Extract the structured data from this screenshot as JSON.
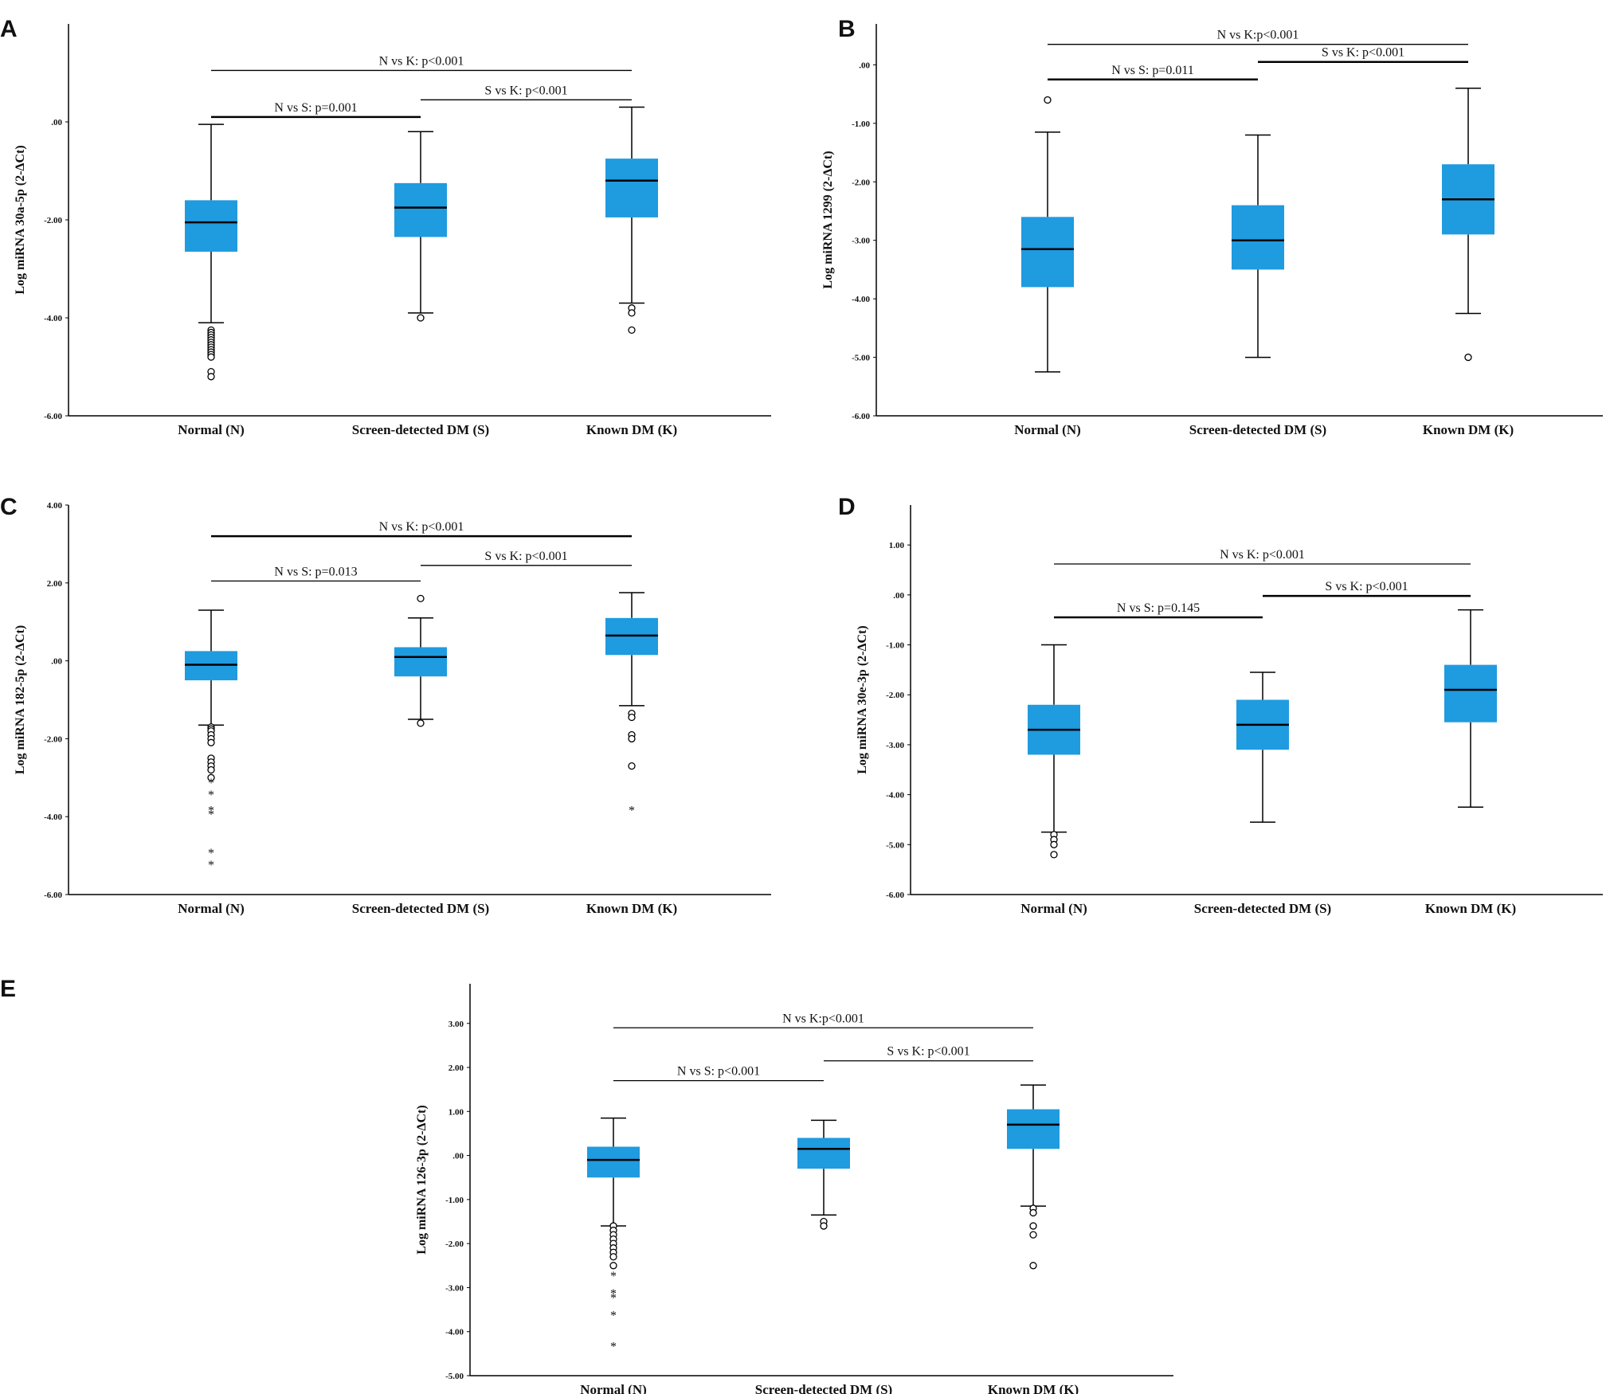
{
  "figure": {
    "background": "#ffffff",
    "box_color": "#1f9be0",
    "line_color": "#000000"
  },
  "chart_data": [
    {
      "panel": "A",
      "type": "boxplot",
      "ylabel": "Log miRNA 30a-5p (2-ΔCt)",
      "ylim": [
        -6,
        2
      ],
      "yticks": [
        {
          "v": 0,
          "label": ".00"
        },
        {
          "v": -2,
          "label": "-2.00"
        },
        {
          "v": -4,
          "label": "-4.00"
        },
        {
          "v": -6,
          "label": "-6.00"
        }
      ],
      "categories": [
        "Normal (N)",
        "Screen-detected DM (S)",
        "Known DM (K)"
      ],
      "boxes": [
        {
          "min": -4.1,
          "q1": -2.65,
          "median": -2.05,
          "q3": -1.6,
          "max": -0.05,
          "outliers": [
            -4.25,
            -4.3,
            -4.35,
            -4.4,
            -4.45,
            -4.5,
            -4.55,
            -4.6,
            -4.65,
            -4.7,
            -4.75,
            -4.8,
            -5.1,
            -5.2
          ],
          "extremes": []
        },
        {
          "min": -3.9,
          "q1": -2.35,
          "median": -1.75,
          "q3": -1.25,
          "max": -0.2,
          "outliers": [
            -4.0
          ],
          "extremes": []
        },
        {
          "min": -3.7,
          "q1": -1.95,
          "median": -1.2,
          "q3": -0.75,
          "max": 0.3,
          "outliers": [
            -3.8,
            -3.9,
            -4.25
          ],
          "extremes": []
        }
      ],
      "comparisons": [
        {
          "label": "N vs S: p=0.001",
          "from": 0,
          "to": 1,
          "y": 0.1,
          "thick": true
        },
        {
          "label": "S vs K: p<0.001",
          "from": 1,
          "to": 2,
          "y": 0.45,
          "thick": false
        },
        {
          "label": "N vs K: p<0.001",
          "from": 0,
          "to": 2,
          "y": 1.05,
          "thick": false
        }
      ]
    },
    {
      "panel": "B",
      "type": "boxplot",
      "ylabel": "Log miRNA 1299 (2-ΔCt)",
      "ylim": [
        -6,
        0.7
      ],
      "yticks": [
        {
          "v": 0,
          "label": ".00"
        },
        {
          "v": -1,
          "label": "-1.00"
        },
        {
          "v": -2,
          "label": "-2.00"
        },
        {
          "v": -3,
          "label": "-3.00"
        },
        {
          "v": -4,
          "label": "-4.00"
        },
        {
          "v": -5,
          "label": "-5.00"
        },
        {
          "v": -6,
          "label": "-6.00"
        }
      ],
      "categories": [
        "Normal (N)",
        "Screen-detected DM (S)",
        "Known DM (K)"
      ],
      "boxes": [
        {
          "min": -5.25,
          "q1": -3.8,
          "median": -3.15,
          "q3": -2.6,
          "max": -1.15,
          "outliers": [
            -0.6
          ],
          "extremes": []
        },
        {
          "min": -5.0,
          "q1": -3.5,
          "median": -3.0,
          "q3": -2.4,
          "max": -1.2,
          "outliers": [],
          "extremes": []
        },
        {
          "min": -4.25,
          "q1": -2.9,
          "median": -2.3,
          "q3": -1.7,
          "max": -0.4,
          "outliers": [
            -5.0
          ],
          "extremes": []
        }
      ],
      "comparisons": [
        {
          "label": "N vs S: p=0.011",
          "from": 0,
          "to": 1,
          "y": -0.25,
          "thick": true
        },
        {
          "label": "S vs K: p<0.001",
          "from": 1,
          "to": 2,
          "y": 0.05,
          "thick": true
        },
        {
          "label": "N vs K:p<0.001",
          "from": 0,
          "to": 2,
          "y": 0.35,
          "thick": false
        }
      ]
    },
    {
      "panel": "C",
      "type": "boxplot",
      "ylabel": "Log miRNA 182-5p (2-ΔCt)",
      "ylim": [
        -6,
        4
      ],
      "yticks": [
        {
          "v": 4,
          "label": "4.00"
        },
        {
          "v": 2,
          "label": "2.00"
        },
        {
          "v": 0,
          "label": ".00"
        },
        {
          "v": -2,
          "label": "-2.00"
        },
        {
          "v": -4,
          "label": "-4.00"
        },
        {
          "v": -6,
          "label": "-6.00"
        }
      ],
      "categories": [
        "Normal (N)",
        "Screen-detected DM (S)",
        "Known DM (K)"
      ],
      "boxes": [
        {
          "min": -1.65,
          "q1": -0.5,
          "median": -0.1,
          "q3": 0.25,
          "max": 1.3,
          "outliers": [
            -1.7,
            -1.75,
            -1.8,
            -1.9,
            -2.0,
            -2.1,
            -2.5,
            -2.6,
            -2.7,
            -2.8,
            -3.0
          ],
          "extremes": [
            -3.1,
            -3.4,
            -3.8,
            -3.9,
            -4.9,
            -5.2
          ]
        },
        {
          "min": -1.5,
          "q1": -0.4,
          "median": 0.1,
          "q3": 0.35,
          "max": 1.1,
          "outliers": [
            1.6,
            -1.6
          ],
          "extremes": []
        },
        {
          "min": -1.15,
          "q1": 0.15,
          "median": 0.65,
          "q3": 1.1,
          "max": 1.75,
          "outliers": [
            -1.35,
            -1.45,
            -1.9,
            -2.0,
            -2.7
          ],
          "extremes": [
            -3.8
          ]
        }
      ],
      "comparisons": [
        {
          "label": "N vs S: p=0.013",
          "from": 0,
          "to": 1,
          "y": 2.05,
          "thick": false
        },
        {
          "label": "S vs K: p<0.001",
          "from": 1,
          "to": 2,
          "y": 2.45,
          "thick": false
        },
        {
          "label": "N vs K: p<0.001",
          "from": 0,
          "to": 2,
          "y": 3.2,
          "thick": true
        }
      ]
    },
    {
      "panel": "D",
      "type": "boxplot",
      "ylabel": "Log miRNA 30e-3p (2-ΔCt)",
      "ylim": [
        -6,
        1.8
      ],
      "yticks": [
        {
          "v": 1,
          "label": "1.00"
        },
        {
          "v": 0,
          "label": ".00"
        },
        {
          "v": -1,
          "label": "-1.00"
        },
        {
          "v": -2,
          "label": "-2.00"
        },
        {
          "v": -3,
          "label": "-3.00"
        },
        {
          "v": -4,
          "label": "-4.00"
        },
        {
          "v": -5,
          "label": "-5.00"
        },
        {
          "v": -6,
          "label": "-6.00"
        }
      ],
      "categories": [
        "Normal (N)",
        "Screen-detected DM (S)",
        "Known DM (K)"
      ],
      "boxes": [
        {
          "min": -4.75,
          "q1": -3.2,
          "median": -2.7,
          "q3": -2.2,
          "max": -1.0,
          "outliers": [
            -4.8,
            -4.9,
            -5.0,
            -5.2
          ],
          "extremes": []
        },
        {
          "min": -4.55,
          "q1": -3.1,
          "median": -2.6,
          "q3": -2.1,
          "max": -1.55,
          "outliers": [],
          "extremes": []
        },
        {
          "min": -4.25,
          "q1": -2.55,
          "median": -1.9,
          "q3": -1.4,
          "max": -0.3,
          "outliers": [],
          "extremes": []
        }
      ],
      "comparisons": [
        {
          "label": "N vs S: p=0.145",
          "from": 0,
          "to": 1,
          "y": -0.45,
          "thick": true
        },
        {
          "label": "S vs K: p<0.001",
          "from": 1,
          "to": 2,
          "y": -0.02,
          "thick": true
        },
        {
          "label": "N vs K: p<0.001",
          "from": 0,
          "to": 2,
          "y": 0.62,
          "thick": false
        }
      ]
    },
    {
      "panel": "E",
      "type": "boxplot",
      "ylabel": "Log miRNA 126-3p (2-ΔCt)",
      "ylim": [
        -5,
        3.9
      ],
      "yticks": [
        {
          "v": 3,
          "label": "3.00"
        },
        {
          "v": 2,
          "label": "2.00"
        },
        {
          "v": 1,
          "label": "1.00"
        },
        {
          "v": 0,
          "label": ".00"
        },
        {
          "v": -1,
          "label": "-1.00"
        },
        {
          "v": -2,
          "label": "-2.00"
        },
        {
          "v": -3,
          "label": "-3.00"
        },
        {
          "v": -4,
          "label": "-4.00"
        },
        {
          "v": -5,
          "label": "-5.00"
        }
      ],
      "categories": [
        "Normal (N)",
        "Screen-detected DM (S)",
        "Known DM (K)"
      ],
      "boxes": [
        {
          "min": -1.6,
          "q1": -0.5,
          "median": -0.1,
          "q3": 0.2,
          "max": 0.85,
          "outliers": [
            -1.6,
            -1.7,
            -1.8,
            -1.9,
            -2.0,
            -2.1,
            -2.2,
            -2.3,
            -2.5
          ],
          "extremes": [
            -2.7,
            -3.1,
            -3.2,
            -3.6,
            -4.3
          ]
        },
        {
          "min": -1.35,
          "q1": -0.3,
          "median": 0.15,
          "q3": 0.4,
          "max": 0.8,
          "outliers": [
            -1.5,
            -1.6
          ],
          "extremes": []
        },
        {
          "min": -1.15,
          "q1": 0.15,
          "median": 0.7,
          "q3": 1.05,
          "max": 1.6,
          "outliers": [
            -1.2,
            -1.3,
            -1.6,
            -1.8,
            -2.5
          ],
          "extremes": []
        }
      ],
      "comparisons": [
        {
          "label": "N vs S: p<0.001",
          "from": 0,
          "to": 1,
          "y": 1.7,
          "thick": false
        },
        {
          "label": "S vs K: p<0.001",
          "from": 1,
          "to": 2,
          "y": 2.15,
          "thick": false
        },
        {
          "label": "N vs K:p<0.001",
          "from": 0,
          "to": 2,
          "y": 2.9,
          "thick": false
        }
      ]
    }
  ]
}
